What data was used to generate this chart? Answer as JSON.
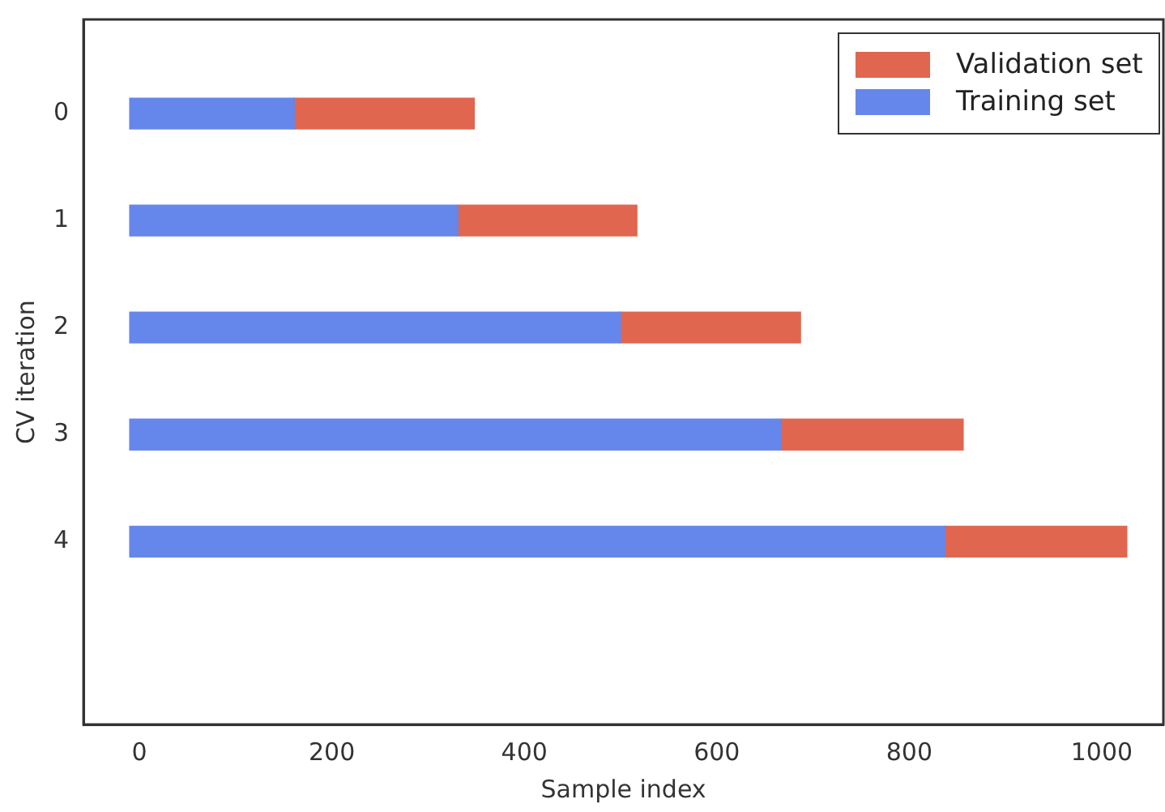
{
  "chart_data": {
    "type": "bar",
    "orientation": "horizontal",
    "xlabel": "Sample index",
    "ylabel": "CV iteration",
    "categories": [
      "0",
      "1",
      "2",
      "3",
      "4"
    ],
    "series": [
      {
        "name": "Training set",
        "color": "#6586ea",
        "base": [
          -10,
          -10,
          -10,
          -10,
          -10
        ],
        "values": [
          171,
          341,
          510,
          677,
          847
        ]
      },
      {
        "name": "Validation set",
        "color": "#e06650",
        "base": [
          161,
          331,
          500,
          667,
          837
        ],
        "values": [
          187,
          186,
          187,
          189,
          189
        ]
      }
    ],
    "xlim": [
      -58,
      1064
    ],
    "xticks": [
      0,
      200,
      400,
      600,
      800,
      1000
    ],
    "grid": false,
    "legend": "top right"
  }
}
